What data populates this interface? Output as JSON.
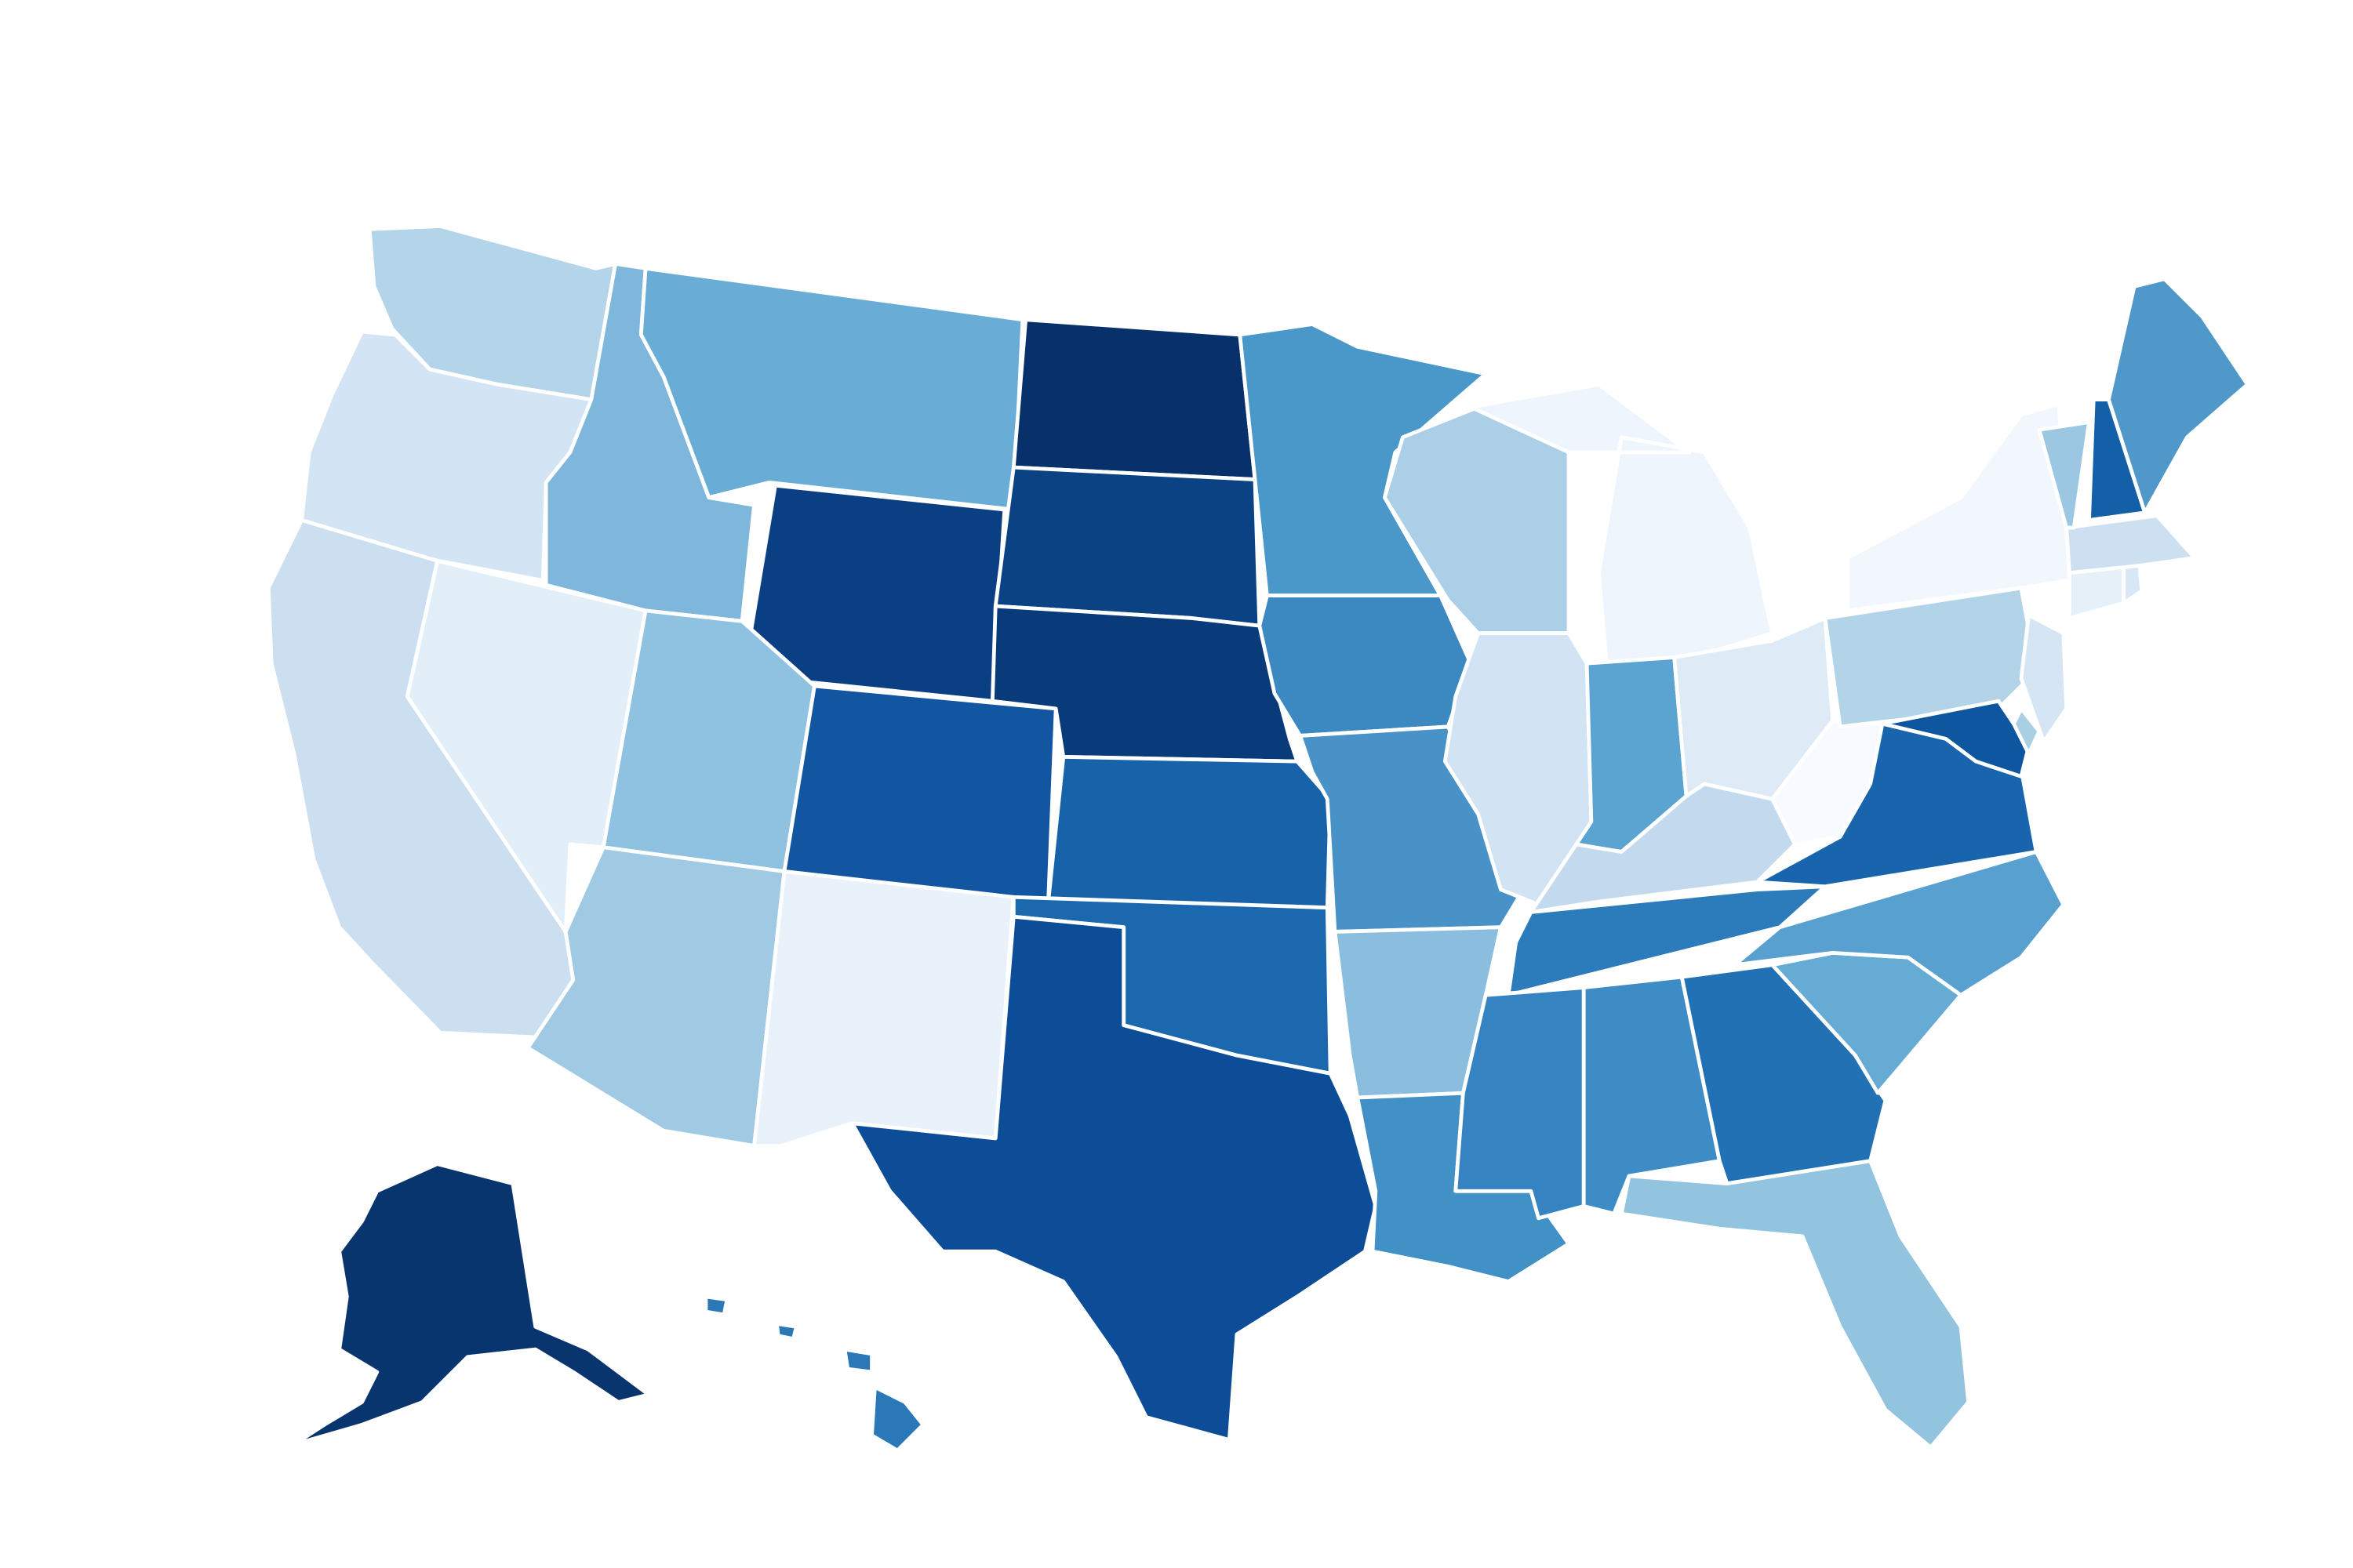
{
  "map": {
    "type": "choropleth",
    "region": "United States",
    "color_scale": "sequential-blues",
    "background": "#ffffff",
    "border_color": "#ffffff",
    "states": {
      "WA": "#b4d4ea",
      "OR": "#d3e4f4",
      "CA": "#cbdff1",
      "NV": "#e2eef8",
      "ID": "#7fb7dc",
      "MT": "#69acd5",
      "WY": "#0b3f84",
      "UT": "#8fc1e0",
      "AZ": "#a0cae3",
      "CO": "#1255a0",
      "NM": "#e9f2fa",
      "ND": "#08306b",
      "SD": "#0b4283",
      "NE": "#093a7a",
      "KS": "#1862aa",
      "OK": "#1c68ae",
      "TX": "#0d4d97",
      "MN": "#4a97c9",
      "IA": "#3c89c2",
      "MO": "#4992c8",
      "AR": "#8bbede",
      "LA": "#4190c6",
      "WI": "#abcfe6",
      "IL": "#d2e3f3",
      "MI": "#eef5fc",
      "IN": "#5ba3d0",
      "OH": "#deebf7",
      "KY": "#c3daee",
      "TN": "#2c7bbb",
      "MS": "#3583c0",
      "AL": "#3e8cc5",
      "GA": "#2271b4",
      "FL": "#92c3df",
      "SC": "#66abd4",
      "NC": "#58a0cf",
      "VA": "#1965ad",
      "WV": "#f7fbff",
      "PA": "#b3d3e8",
      "NY": "#f1f7fd",
      "MD": "#0f56a1",
      "DE": "#a9cfe5",
      "NJ": "#d5e5f4",
      "CT": "#e6f0f9",
      "RI": "#d8e7f5",
      "MA": "#cde0f1",
      "VT": "#9cc7e2",
      "NH": "#1460a8",
      "ME": "#5097ca",
      "AK": "#09356f",
      "HI": "#2b78b9"
    }
  }
}
